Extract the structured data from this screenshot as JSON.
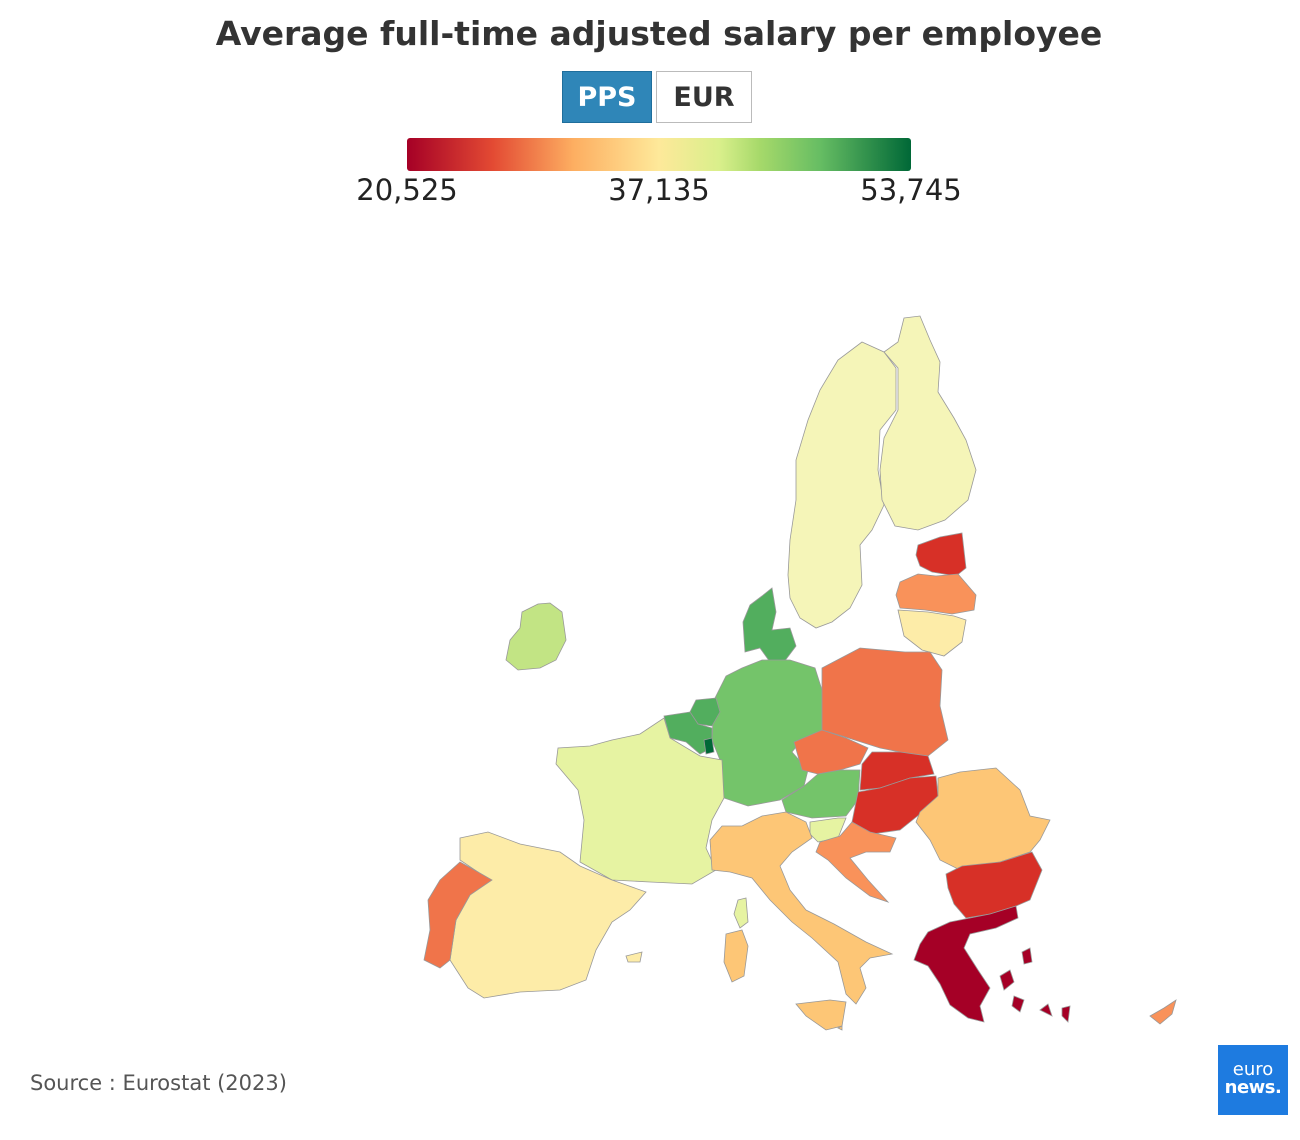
{
  "title": "Average full-time adjusted salary per employee",
  "toggle": {
    "pps_label": "PPS",
    "eur_label": "EUR",
    "selected": "PPS"
  },
  "colorscale": {
    "min_label": "20,525",
    "mid_label": "37,135",
    "max_label": "53,745",
    "min": 20525,
    "mid": 37135,
    "max": 53745
  },
  "colors": {
    "dark_red": "#a50026",
    "red": "#d73027",
    "orange_red": "#f0744a",
    "orange": "#f9925a",
    "light_orange": "#fdc676",
    "pale_yellow": "#fdeca8",
    "light_yellow": "#f5f5b8",
    "yellow_green": "#e6f3a2",
    "light_green": "#c2e484",
    "green": "#74c46a",
    "mid_green": "#52ae5e",
    "dark_green": "#006837",
    "accent": "#2f86b8"
  },
  "map": {
    "countries": [
      {
        "name": "Sweden",
        "color": "light_yellow"
      },
      {
        "name": "Finland",
        "color": "light_yellow"
      },
      {
        "name": "Estonia",
        "color": "red"
      },
      {
        "name": "Latvia",
        "color": "orange"
      },
      {
        "name": "Lithuania",
        "color": "pale_yellow"
      },
      {
        "name": "Ireland",
        "color": "light_green"
      },
      {
        "name": "Denmark",
        "color": "mid_green"
      },
      {
        "name": "Germany",
        "color": "green"
      },
      {
        "name": "Netherlands",
        "color": "mid_green"
      },
      {
        "name": "Belgium",
        "color": "mid_green"
      },
      {
        "name": "Luxembourg",
        "color": "dark_green"
      },
      {
        "name": "France",
        "color": "yellow_green"
      },
      {
        "name": "Poland",
        "color": "orange_red"
      },
      {
        "name": "Czechia",
        "color": "orange_red"
      },
      {
        "name": "Slovakia",
        "color": "red"
      },
      {
        "name": "Austria",
        "color": "green"
      },
      {
        "name": "Slovenia",
        "color": "yellow_green"
      },
      {
        "name": "Hungary",
        "color": "red"
      },
      {
        "name": "Croatia",
        "color": "orange"
      },
      {
        "name": "Romania",
        "color": "light_orange"
      },
      {
        "name": "Bulgaria",
        "color": "red"
      },
      {
        "name": "Greece",
        "color": "dark_red"
      },
      {
        "name": "Italy",
        "color": "light_orange"
      },
      {
        "name": "Spain",
        "color": "pale_yellow"
      },
      {
        "name": "Portugal",
        "color": "orange_red"
      },
      {
        "name": "Cyprus",
        "color": "orange"
      },
      {
        "name": "Malta",
        "color": "light_orange"
      }
    ]
  },
  "source": "Source : Eurostat (2023)",
  "logo": {
    "line1": "euro",
    "line2": "news."
  }
}
